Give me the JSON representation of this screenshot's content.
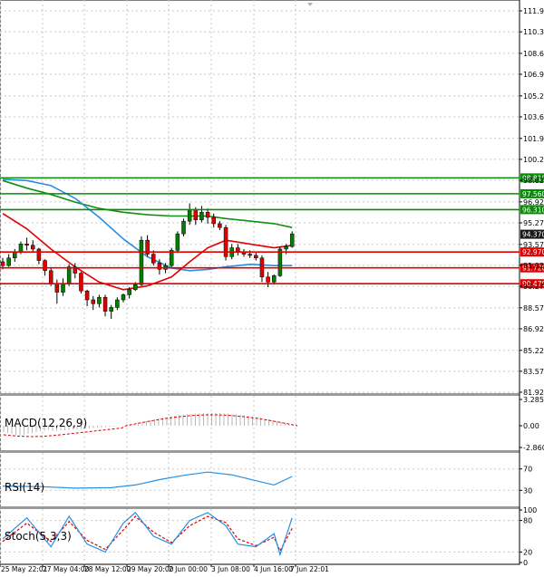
{
  "colors": {
    "up": "#008000",
    "down": "#e00000",
    "ma_fast": "#e00000",
    "ma_slow": "#2a8ee0",
    "ma_long": "#109010",
    "signal": "#e00000",
    "grid": "#c8c8c8",
    "price_tag_bg": "#1a1a1a"
  },
  "main": {
    "price_axis": [
      "111.970",
      "110.320",
      "108.620",
      "106.970",
      "105.270",
      "103.620",
      "101.920",
      "100.270",
      "98.620",
      "96.920",
      "95.270",
      "93.570",
      "91.920",
      "90.270",
      "88.570",
      "86.920",
      "85.220",
      "83.570",
      "81.920"
    ],
    "current_price": "94.370",
    "levels": [
      {
        "value": "98.810",
        "color": "#0a8a0a"
      },
      {
        "value": "97.560",
        "color": "#0a8a0a"
      },
      {
        "value": "96.310",
        "color": "#0a8a0a"
      },
      {
        "value": "92.970",
        "color": "#e00000"
      },
      {
        "value": "91.720",
        "color": "#e00000"
      },
      {
        "value": "90.470",
        "color": "#e00000"
      }
    ]
  },
  "macd": {
    "label": "MACD(12,26,9)",
    "axis": [
      "3.2851",
      "0.00",
      "-2.8606"
    ]
  },
  "rsi": {
    "label": "RSI(14)",
    "axis": [
      "70",
      "30"
    ]
  },
  "stoch": {
    "label": "Stoch(5,3,3)",
    "axis": [
      "100",
      "80",
      "20",
      "0"
    ]
  },
  "time_axis": [
    "25 May 22:01",
    "27 May 04:00",
    "28 May 12:00",
    "29 May 20:00",
    "2 Jun 00:00",
    "3 Jun 08:00",
    "4 Jun 16:00",
    "7 Jun 22:01"
  ],
  "chart_data": {
    "type": "candlestick",
    "y_range": [
      81.92,
      111.97
    ],
    "ohlc": [
      [
        92.2,
        92.5,
        91.6,
        91.9
      ],
      [
        91.9,
        92.8,
        91.8,
        92.5
      ],
      [
        92.5,
        93.2,
        92.2,
        93.0
      ],
      [
        93.0,
        93.8,
        92.8,
        93.6
      ],
      [
        93.6,
        94.1,
        93.1,
        93.5
      ],
      [
        93.5,
        93.9,
        93.0,
        93.2
      ],
      [
        93.2,
        93.3,
        92.0,
        92.3
      ],
      [
        92.3,
        92.4,
        91.1,
        91.5
      ],
      [
        91.5,
        91.7,
        90.3,
        90.5
      ],
      [
        90.5,
        90.8,
        88.9,
        89.8
      ],
      [
        89.8,
        90.9,
        89.5,
        90.5
      ],
      [
        90.5,
        92.0,
        90.3,
        91.8
      ],
      [
        91.8,
        92.1,
        90.9,
        91.3
      ],
      [
        91.3,
        91.4,
        89.7,
        89.9
      ],
      [
        89.9,
        90.0,
        88.7,
        89.2
      ],
      [
        89.2,
        89.5,
        88.4,
        88.9
      ],
      [
        88.9,
        89.6,
        88.6,
        89.4
      ],
      [
        89.4,
        89.6,
        87.9,
        88.3
      ],
      [
        88.3,
        88.8,
        87.7,
        88.6
      ],
      [
        88.6,
        89.4,
        88.4,
        89.2
      ],
      [
        89.2,
        89.7,
        89.0,
        89.6
      ],
      [
        89.6,
        90.2,
        89.3,
        90.0
      ],
      [
        90.0,
        90.6,
        89.9,
        90.4
      ],
      [
        90.4,
        94.2,
        90.3,
        93.9
      ],
      [
        93.9,
        94.3,
        92.6,
        92.8
      ],
      [
        92.8,
        93.1,
        91.9,
        92.1
      ],
      [
        92.1,
        92.4,
        91.2,
        91.6
      ],
      [
        91.6,
        92.1,
        91.3,
        91.9
      ],
      [
        91.9,
        93.3,
        91.7,
        93.1
      ],
      [
        93.1,
        94.6,
        92.9,
        94.4
      ],
      [
        94.4,
        95.6,
        94.2,
        95.4
      ],
      [
        95.4,
        96.8,
        95.1,
        96.3
      ],
      [
        96.3,
        96.5,
        95.1,
        95.5
      ],
      [
        95.5,
        96.6,
        95.3,
        96.1
      ],
      [
        96.1,
        96.4,
        95.2,
        95.7
      ],
      [
        95.7,
        96.0,
        94.9,
        95.2
      ],
      [
        95.2,
        95.4,
        94.7,
        94.9
      ],
      [
        94.9,
        95.1,
        92.3,
        92.6
      ],
      [
        92.6,
        93.6,
        92.4,
        93.3
      ],
      [
        93.3,
        93.6,
        92.7,
        93.0
      ],
      [
        93.0,
        93.2,
        92.6,
        92.8
      ],
      [
        92.8,
        93.1,
        92.5,
        92.7
      ],
      [
        92.7,
        93.0,
        92.3,
        92.5
      ],
      [
        92.5,
        92.7,
        90.6,
        91.0
      ],
      [
        91.0,
        91.4,
        90.2,
        90.6
      ],
      [
        90.6,
        91.2,
        90.4,
        91.1
      ],
      [
        91.1,
        93.4,
        91.0,
        93.2
      ],
      [
        93.2,
        93.6,
        92.8,
        93.4
      ],
      [
        93.4,
        94.6,
        93.3,
        94.4
      ]
    ],
    "ma_fast": [
      [
        0,
        96.0
      ],
      [
        4,
        94.8
      ],
      [
        8,
        93.2
      ],
      [
        12,
        91.8
      ],
      [
        16,
        90.6
      ],
      [
        20,
        90.0
      ],
      [
        24,
        90.3
      ],
      [
        28,
        91.0
      ],
      [
        31,
        92.2
      ],
      [
        34,
        93.3
      ],
      [
        37,
        93.9
      ],
      [
        41,
        93.6
      ],
      [
        45,
        93.3
      ],
      [
        48,
        93.5
      ]
    ],
    "ma_slow": [
      [
        0,
        98.7
      ],
      [
        4,
        98.6
      ],
      [
        8,
        98.2
      ],
      [
        12,
        97.2
      ],
      [
        16,
        95.7
      ],
      [
        20,
        94.0
      ],
      [
        24,
        92.6
      ],
      [
        28,
        91.7
      ],
      [
        31,
        91.5
      ],
      [
        34,
        91.6
      ],
      [
        37,
        91.8
      ],
      [
        41,
        92.0
      ],
      [
        45,
        91.9
      ],
      [
        48,
        91.9
      ]
    ],
    "ma_long": [
      [
        0,
        98.6
      ],
      [
        4,
        98.0
      ],
      [
        8,
        97.5
      ],
      [
        12,
        96.9
      ],
      [
        16,
        96.4
      ],
      [
        20,
        96.1
      ],
      [
        24,
        95.9
      ],
      [
        28,
        95.8
      ],
      [
        31,
        95.8
      ],
      [
        34,
        95.8
      ],
      [
        37,
        95.6
      ],
      [
        41,
        95.4
      ],
      [
        45,
        95.2
      ],
      [
        48,
        94.9
      ]
    ],
    "rsi_line": [
      [
        0,
        38
      ],
      [
        6,
        37
      ],
      [
        12,
        34
      ],
      [
        18,
        35
      ],
      [
        22,
        40
      ],
      [
        26,
        50
      ],
      [
        30,
        58
      ],
      [
        34,
        64
      ],
      [
        38,
        59
      ],
      [
        42,
        48
      ],
      [
        45,
        40
      ],
      [
        48,
        56
      ]
    ],
    "stoch_k": [
      [
        0,
        45
      ],
      [
        4,
        85
      ],
      [
        8,
        30
      ],
      [
        11,
        88
      ],
      [
        14,
        35
      ],
      [
        17,
        20
      ],
      [
        20,
        75
      ],
      [
        22,
        95
      ],
      [
        25,
        50
      ],
      [
        28,
        35
      ],
      [
        31,
        80
      ],
      [
        34,
        95
      ],
      [
        37,
        70
      ],
      [
        39,
        35
      ],
      [
        42,
        30
      ],
      [
        45,
        55
      ],
      [
        46,
        15
      ],
      [
        48,
        85
      ]
    ],
    "stoch_d": [
      [
        0,
        40
      ],
      [
        4,
        75
      ],
      [
        8,
        40
      ],
      [
        11,
        78
      ],
      [
        14,
        42
      ],
      [
        17,
        25
      ],
      [
        20,
        62
      ],
      [
        22,
        88
      ],
      [
        25,
        58
      ],
      [
        28,
        38
      ],
      [
        31,
        70
      ],
      [
        34,
        88
      ],
      [
        37,
        76
      ],
      [
        39,
        45
      ],
      [
        42,
        32
      ],
      [
        45,
        48
      ],
      [
        46,
        22
      ],
      [
        48,
        65
      ]
    ]
  }
}
